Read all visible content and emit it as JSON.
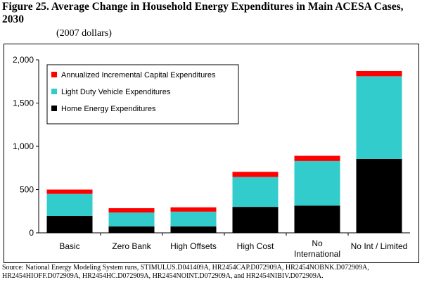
{
  "figure": {
    "title": "Figure 25.  Average Change in Household Energy Expenditures in Main ACESA Cases, 2030",
    "units": "(2007 dollars)",
    "source": "Source:  National Energy Modeling System runs, STIMULUS.D041409A, HR2454CAP.D072909A, HR2454NOBNK.D072909A, HR2454HIOFF.D072909A, HR2454HC.D072909A, HR2454NOINT.D072909A, and HR2454NIBIV.D072909A."
  },
  "chart_data": {
    "type": "bar",
    "stacked": true,
    "categories": [
      [
        "Basic"
      ],
      [
        "Zero Bank"
      ],
      [
        "High Offsets"
      ],
      [
        "High Cost"
      ],
      [
        "No",
        "International"
      ],
      [
        "No Int / Limited"
      ]
    ],
    "series": [
      {
        "name": "Home Energy Expenditures",
        "color": "#000000",
        "values": [
          195,
          75,
          75,
          300,
          315,
          855
        ]
      },
      {
        "name": "Light Duty Vehicle Expenditures",
        "color": "#33CCCC",
        "values": [
          255,
          160,
          170,
          345,
          515,
          955
        ]
      },
      {
        "name": "Annualized Incremental Capital Expenditures",
        "color": "#FF0000",
        "values": [
          50,
          50,
          50,
          60,
          60,
          60
        ]
      }
    ],
    "legend_order": [
      "Annualized Incremental Capital Expenditures",
      "Light Duty Vehicle Expenditures",
      "Home Energy Expenditures"
    ],
    "ylim": [
      0,
      2000
    ],
    "yticks": [
      0,
      500,
      1000,
      1500,
      2000
    ],
    "ytick_labels": [
      "0",
      "500",
      "1,000",
      "1,500",
      "2,000"
    ],
    "legend_placement": "top-left",
    "grid": false
  }
}
